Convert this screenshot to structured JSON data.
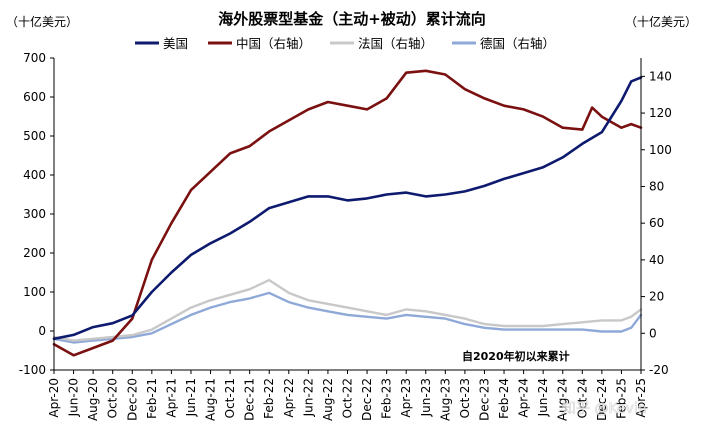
{
  "chart_data": {
    "type": "line",
    "title": "海外股票型基金（主动+被动）累计流向",
    "left_unit": "（十亿美元）",
    "right_unit": "（十亿美元）",
    "note": "自2020年初以来累计",
    "watermark": "知乎 @Kevin",
    "ylim_left": [
      -100,
      700
    ],
    "ylim_right": [
      -20,
      150
    ],
    "yticks_left": [
      -100,
      0,
      100,
      200,
      300,
      400,
      500,
      600,
      700
    ],
    "yticks_right": [
      -20,
      0,
      20,
      40,
      60,
      80,
      100,
      120,
      140
    ],
    "ytick_labels_left": [
      "-100",
      "0",
      "100",
      "200",
      "300",
      "400",
      "500",
      "600",
      "700"
    ],
    "ytick_labels_right": [
      "-20",
      "0",
      "20",
      "40",
      "60",
      "80",
      "100",
      "120",
      "140"
    ],
    "x_range": [
      "2020-04",
      "2025-04"
    ],
    "xtick_labels": [
      "Apr-20",
      "Jun-20",
      "Aug-20",
      "Oct-20",
      "Dec-20",
      "Feb-21",
      "Apr-21",
      "Jun-21",
      "Aug-21",
      "Oct-21",
      "Dec-21",
      "Feb-22",
      "Apr-22",
      "Jun-22",
      "Aug-22",
      "Oct-22",
      "Dec-22",
      "Feb-23",
      "Apr-23",
      "Jun-23",
      "Aug-23",
      "Oct-23",
      "Dec-23",
      "Feb-24",
      "Apr-24",
      "Jun-24",
      "Aug-24",
      "Oct-24",
      "Dec-24",
      "Feb-25",
      "Apr-25"
    ],
    "series": [
      {
        "name": "美国",
        "axis": "left",
        "color": "#0d1a6e",
        "x": [
          "2020-04",
          "2020-06",
          "2020-08",
          "2020-10",
          "2020-12",
          "2021-02",
          "2021-04",
          "2021-06",
          "2021-08",
          "2021-10",
          "2021-12",
          "2022-02",
          "2022-04",
          "2022-06",
          "2022-08",
          "2022-10",
          "2022-12",
          "2023-02",
          "2023-04",
          "2023-06",
          "2023-08",
          "2023-10",
          "2023-12",
          "2024-02",
          "2024-04",
          "2024-06",
          "2024-08",
          "2024-10",
          "2024-12",
          "2025-02",
          "2025-03",
          "2025-04"
        ],
        "values": [
          -20,
          -10,
          10,
          20,
          40,
          100,
          150,
          195,
          225,
          250,
          280,
          315,
          330,
          345,
          345,
          335,
          340,
          350,
          355,
          345,
          350,
          358,
          372,
          390,
          405,
          420,
          445,
          480,
          510,
          590,
          640,
          650
        ]
      },
      {
        "name": "中国（右轴）",
        "axis": "right",
        "color": "#7b1010",
        "x": [
          "2020-04",
          "2020-06",
          "2020-08",
          "2020-10",
          "2020-12",
          "2021-02",
          "2021-04",
          "2021-06",
          "2021-08",
          "2021-10",
          "2021-12",
          "2022-02",
          "2022-04",
          "2022-06",
          "2022-08",
          "2022-10",
          "2022-12",
          "2023-02",
          "2023-04",
          "2023-06",
          "2023-08",
          "2023-10",
          "2023-12",
          "2024-02",
          "2024-04",
          "2024-06",
          "2024-08",
          "2024-10",
          "2024-11",
          "2024-12",
          "2025-02",
          "2025-03",
          "2025-04"
        ],
        "values": [
          -6,
          -12,
          -8,
          -4,
          8,
          40,
          60,
          78,
          88,
          98,
          102,
          110,
          116,
          122,
          126,
          124,
          122,
          128,
          142,
          143,
          141,
          133,
          128,
          124,
          122,
          118,
          112,
          111,
          123,
          118,
          112,
          114,
          112
        ]
      },
      {
        "name": "法国（右轴）",
        "axis": "right",
        "color": "#c8c8c8",
        "x": [
          "2020-04",
          "2020-06",
          "2020-08",
          "2020-10",
          "2020-12",
          "2021-02",
          "2021-04",
          "2021-06",
          "2021-08",
          "2021-10",
          "2021-12",
          "2022-02",
          "2022-04",
          "2022-06",
          "2022-08",
          "2022-10",
          "2022-12",
          "2023-02",
          "2023-04",
          "2023-06",
          "2023-08",
          "2023-10",
          "2023-12",
          "2024-02",
          "2024-04",
          "2024-06",
          "2024-08",
          "2024-10",
          "2024-12",
          "2025-02",
          "2025-03",
          "2025-04"
        ],
        "values": [
          -2,
          -4,
          -3,
          -2,
          -1,
          2,
          8,
          14,
          18,
          21,
          24,
          29,
          22,
          18,
          16,
          14,
          12,
          10,
          13,
          12,
          10,
          8,
          5,
          4,
          4,
          4,
          5,
          6,
          7,
          7,
          9,
          13
        ]
      },
      {
        "name": "德国（右轴）",
        "axis": "right",
        "color": "#8ea9d8",
        "x": [
          "2020-04",
          "2020-06",
          "2020-08",
          "2020-10",
          "2020-12",
          "2021-02",
          "2021-04",
          "2021-06",
          "2021-08",
          "2021-10",
          "2021-12",
          "2022-02",
          "2022-04",
          "2022-06",
          "2022-08",
          "2022-10",
          "2022-12",
          "2023-02",
          "2023-04",
          "2023-06",
          "2023-08",
          "2023-10",
          "2023-12",
          "2024-02",
          "2024-04",
          "2024-06",
          "2024-08",
          "2024-10",
          "2024-12",
          "2025-02",
          "2025-03",
          "2025-04"
        ],
        "values": [
          -3,
          -5,
          -4,
          -3,
          -2,
          0,
          5,
          10,
          14,
          17,
          19,
          22,
          17,
          14,
          12,
          10,
          9,
          8,
          10,
          9,
          8,
          5,
          3,
          2,
          2,
          2,
          2,
          2,
          1,
          1,
          3,
          10
        ]
      }
    ],
    "grid": false,
    "legend_position": "top"
  }
}
